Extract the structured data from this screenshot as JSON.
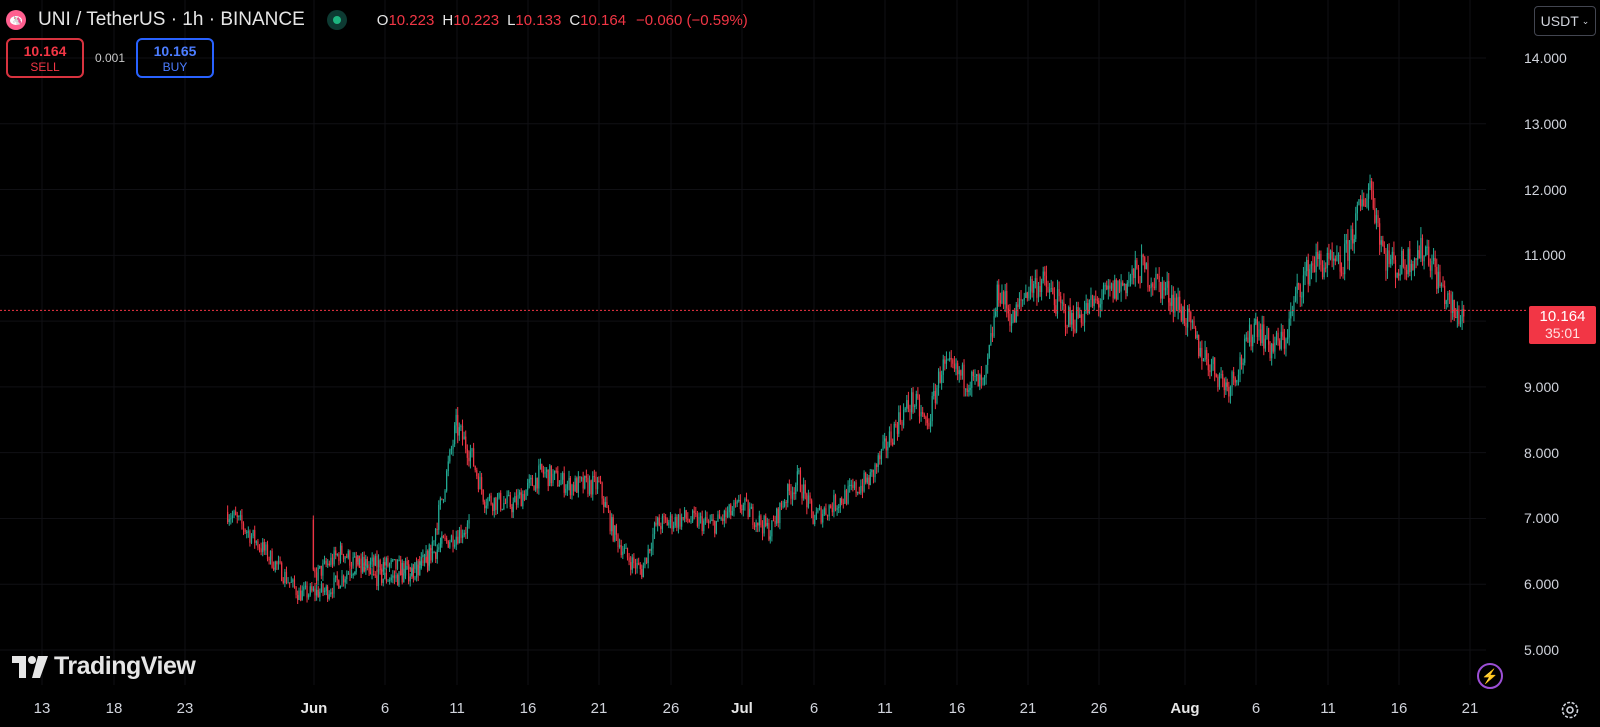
{
  "header": {
    "title": "UNI / TetherUS · 1h · BINANCE",
    "ohlc": [
      {
        "key": "O",
        "value": "10.223"
      },
      {
        "key": "H",
        "value": "10.223"
      },
      {
        "key": "L",
        "value": "10.133"
      },
      {
        "key": "C",
        "value": "10.164"
      }
    ],
    "change": "−0.060 (−0.59%)",
    "status_icon": "market-status-dot",
    "symbol_icon": "uniswap-logo-icon"
  },
  "trade": {
    "sell_price": "10.164",
    "sell_label": "SELL",
    "spread": "0.001",
    "buy_price": "10.165",
    "buy_label": "BUY"
  },
  "currency": {
    "label": "USDT"
  },
  "last_price": {
    "value": "10.164",
    "countdown": "35:01"
  },
  "branding": {
    "logo_text": "TradingView"
  },
  "colors": {
    "up": "#22ab94",
    "down": "#f23645",
    "background": "#000000",
    "buy": "#2962ff"
  },
  "chart_data": {
    "type": "candlestick",
    "interval": "1h",
    "symbol": "UNI / TetherUS",
    "exchange": "BINANCE",
    "y_axis": {
      "labels": [
        "14.000",
        "13.000",
        "12.000",
        "11.000",
        "10.164",
        "9.000",
        "8.000",
        "7.000",
        "6.000",
        "5.000"
      ],
      "ylim": [
        4.6,
        14.7
      ]
    },
    "x_axis": {
      "labels": [
        "13",
        "18",
        "23",
        "Jun",
        "6",
        "11",
        "16",
        "21",
        "26",
        "Jul",
        "6",
        "11",
        "16",
        "21",
        "26",
        "Aug",
        "6",
        "11",
        "16",
        "21"
      ],
      "bold_labels": [
        "Jun",
        "Jul",
        "Aug"
      ]
    },
    "last_close": 10.164,
    "close_path": [
      {
        "date": "May 13",
        "close": 7.1
      },
      {
        "date": "May 14",
        "close": 6.9
      },
      {
        "date": "May 16",
        "close": 6.4
      },
      {
        "date": "May 18",
        "close": 5.85
      },
      {
        "date": "May 20",
        "close": 5.9
      },
      {
        "date": "May 22",
        "close": 6.3
      },
      {
        "date": "May 24",
        "close": 6.3
      },
      {
        "date": "May 26",
        "close": 6.2
      },
      {
        "date": "May 28",
        "close": 6.6
      },
      {
        "date": "May 30",
        "close": 6.9
      },
      {
        "date": "Jun 1",
        "close": 6.1
      },
      {
        "date": "Jun 3",
        "close": 6.5
      },
      {
        "date": "Jun 5",
        "close": 6.1
      },
      {
        "date": "Jun 7",
        "close": 6.1
      },
      {
        "date": "Jun 9",
        "close": 6.3
      },
      {
        "date": "Jun 10",
        "close": 7.3
      },
      {
        "date": "Jun 11",
        "close": 8.4
      },
      {
        "date": "Jun 12",
        "close": 8.0
      },
      {
        "date": "Jun 13",
        "close": 7.3
      },
      {
        "date": "Jun 15",
        "close": 7.2
      },
      {
        "date": "Jun 17",
        "close": 7.7
      },
      {
        "date": "Jun 19",
        "close": 7.5
      },
      {
        "date": "Jun 21",
        "close": 7.5
      },
      {
        "date": "Jun 22",
        "close": 6.8
      },
      {
        "date": "Jun 23",
        "close": 6.4
      },
      {
        "date": "Jun 24",
        "close": 6.2
      },
      {
        "date": "Jun 25",
        "close": 6.9
      },
      {
        "date": "Jun 27",
        "close": 7.0
      },
      {
        "date": "Jun 29",
        "close": 6.9
      },
      {
        "date": "Jul 1",
        "close": 7.2
      },
      {
        "date": "Jul 3",
        "close": 6.8
      },
      {
        "date": "Jul 4",
        "close": 7.3
      },
      {
        "date": "Jul 5",
        "close": 7.6
      },
      {
        "date": "Jul 6",
        "close": 7.0
      },
      {
        "date": "Jul 8",
        "close": 7.3
      },
      {
        "date": "Jul 10",
        "close": 7.6
      },
      {
        "date": "Jul 12",
        "close": 8.5
      },
      {
        "date": "Jul 13",
        "close": 8.8
      },
      {
        "date": "Jul 14",
        "close": 8.4
      },
      {
        "date": "Jul 15",
        "close": 9.3
      },
      {
        "date": "Jul 17",
        "close": 9.1
      },
      {
        "date": "Jul 18",
        "close": 9.0
      },
      {
        "date": "Jul 19",
        "close": 10.5
      },
      {
        "date": "Jul 20",
        "close": 10.0
      },
      {
        "date": "Jul 21",
        "close": 10.5
      },
      {
        "date": "Jul 22",
        "close": 10.6
      },
      {
        "date": "Jul 23",
        "close": 10.3
      },
      {
        "date": "Jul 24",
        "close": 10.0
      },
      {
        "date": "Jul 26",
        "close": 10.3
      },
      {
        "date": "Jul 28",
        "close": 10.6
      },
      {
        "date": "Jul 29",
        "close": 10.8
      },
      {
        "date": "Jul 31",
        "close": 10.4
      },
      {
        "date": "Aug 1",
        "close": 10.1
      },
      {
        "date": "Aug 2",
        "close": 9.6
      },
      {
        "date": "Aug 4",
        "close": 9.0
      },
      {
        "date": "Aug 5",
        "close": 9.4
      },
      {
        "date": "Aug 6",
        "close": 10.0
      },
      {
        "date": "Aug 7",
        "close": 9.6
      },
      {
        "date": "Aug 8",
        "close": 9.7
      },
      {
        "date": "Aug 9",
        "close": 10.5
      },
      {
        "date": "Aug 10",
        "close": 10.9
      },
      {
        "date": "Aug 12",
        "close": 10.8
      },
      {
        "date": "Aug 13",
        "close": 11.5
      },
      {
        "date": "Aug 14",
        "close": 12.1
      },
      {
        "date": "Aug 15",
        "close": 11.0
      },
      {
        "date": "Aug 16",
        "close": 10.8
      },
      {
        "date": "Aug 17",
        "close": 11.0
      },
      {
        "date": "Aug 18",
        "close": 11.1
      },
      {
        "date": "Aug 19",
        "close": 10.5
      },
      {
        "date": "Aug 20",
        "close": 10.05
      },
      {
        "date": "Aug 20",
        "close": 10.164
      }
    ]
  }
}
